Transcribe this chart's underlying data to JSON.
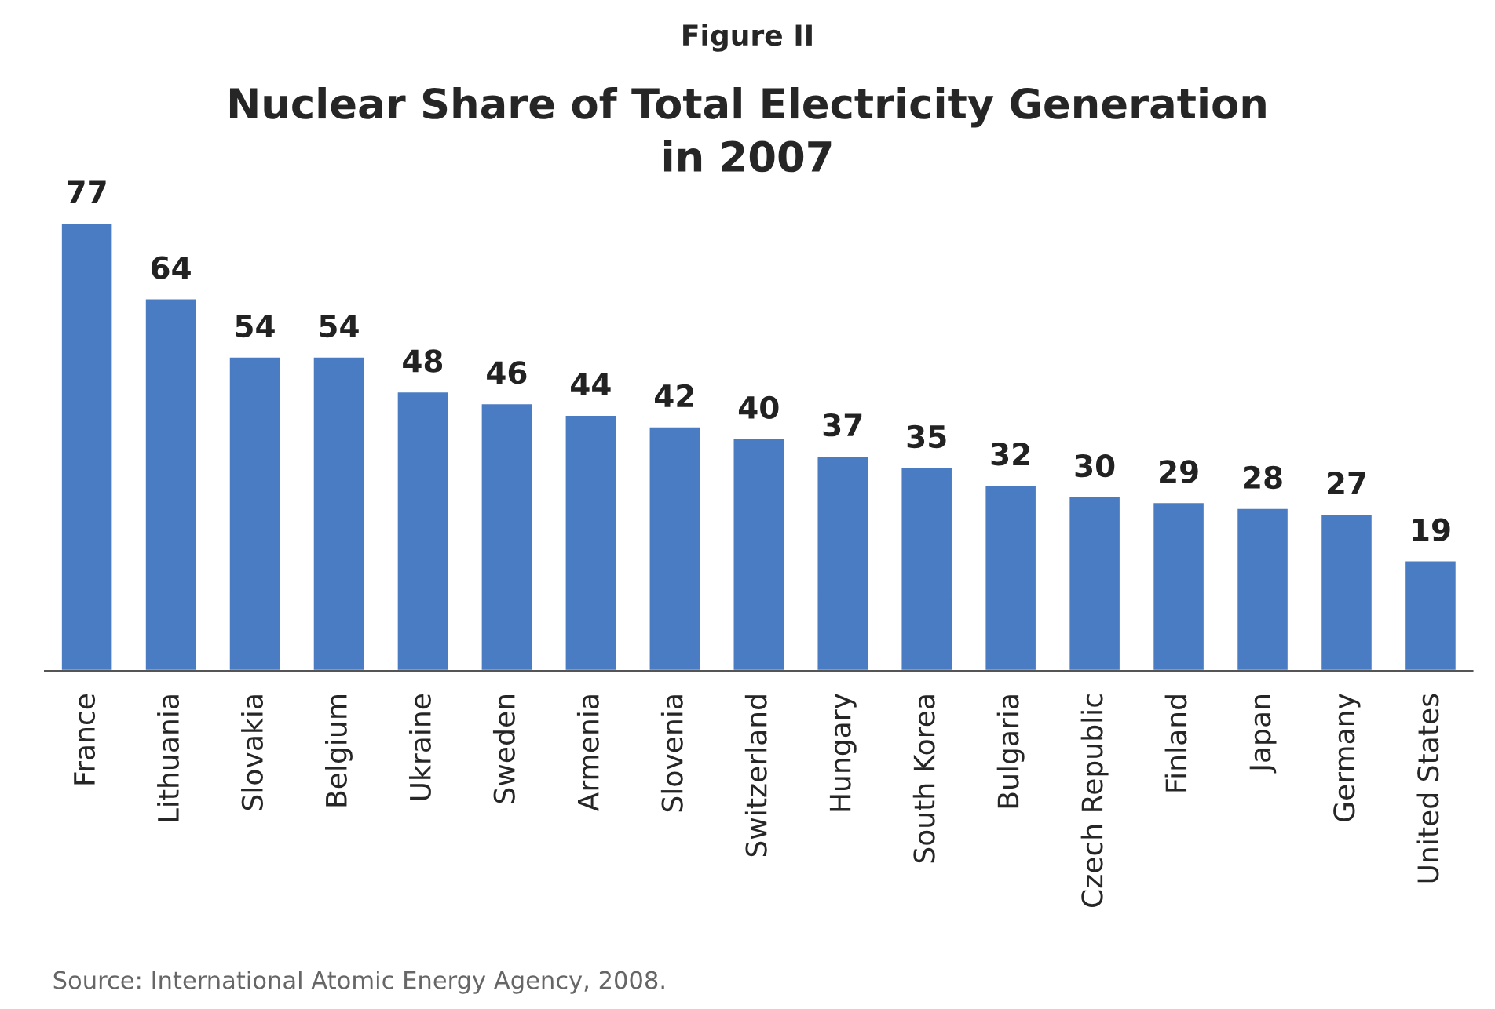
{
  "chart_data": {
    "type": "bar",
    "title": "Nuclear Share of Total Electricity Generation\nin 2007",
    "subtitle": "Figure II",
    "categories": [
      "France",
      "Lithuania",
      "Slovakia",
      "Belgium",
      "Ukraine",
      "Sweden",
      "Armenia",
      "Slovenia",
      "Switzerland",
      "Hungary",
      "South Korea",
      "Bulgaria",
      "Czech Republic",
      "Finland",
      "Japan",
      "Germany",
      "United States"
    ],
    "values": [
      77,
      64,
      54,
      54,
      48,
      46,
      44,
      42,
      40,
      37,
      35,
      32,
      30,
      29,
      28,
      27,
      19
    ],
    "color": "#4a7cc3",
    "data_labels": true,
    "grid": false,
    "legend": false,
    "annotations": [
      "Source: International Atomic Energy Agency, 2008."
    ]
  }
}
